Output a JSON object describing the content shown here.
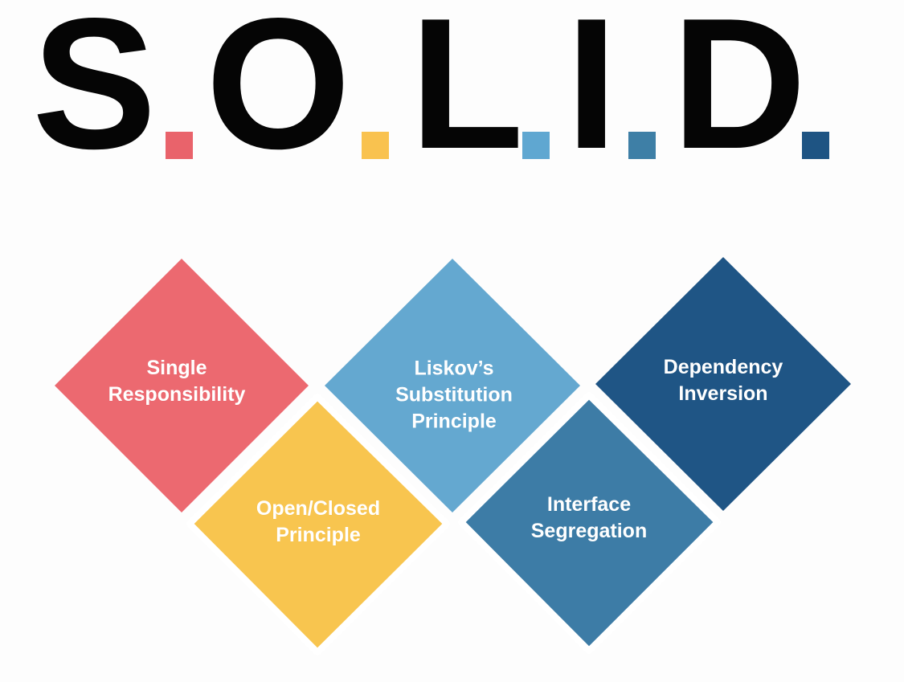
{
  "title": {
    "letters": [
      "S",
      "O",
      "L",
      "I",
      "D"
    ],
    "dot_colors": [
      "#e9636b",
      "#f9c24f",
      "#5fa7d1",
      "#3e7fa6",
      "#1e5483"
    ]
  },
  "principles": [
    {
      "key": "s",
      "lines": [
        "Single",
        "Responsibility"
      ],
      "color": "#ec6970"
    },
    {
      "key": "o",
      "lines": [
        "Open/Closed",
        "Principle"
      ],
      "color": "#f8c54f"
    },
    {
      "key": "l",
      "lines": [
        "Liskov’s",
        "Substitution",
        "Principle"
      ],
      "color": "#64a8d0"
    },
    {
      "key": "i",
      "lines": [
        "Interface",
        "Segregation"
      ],
      "color": "#3d7ca6"
    },
    {
      "key": "d",
      "lines": [
        "Dependency",
        "Inversion"
      ],
      "color": "#1f5585"
    }
  ]
}
